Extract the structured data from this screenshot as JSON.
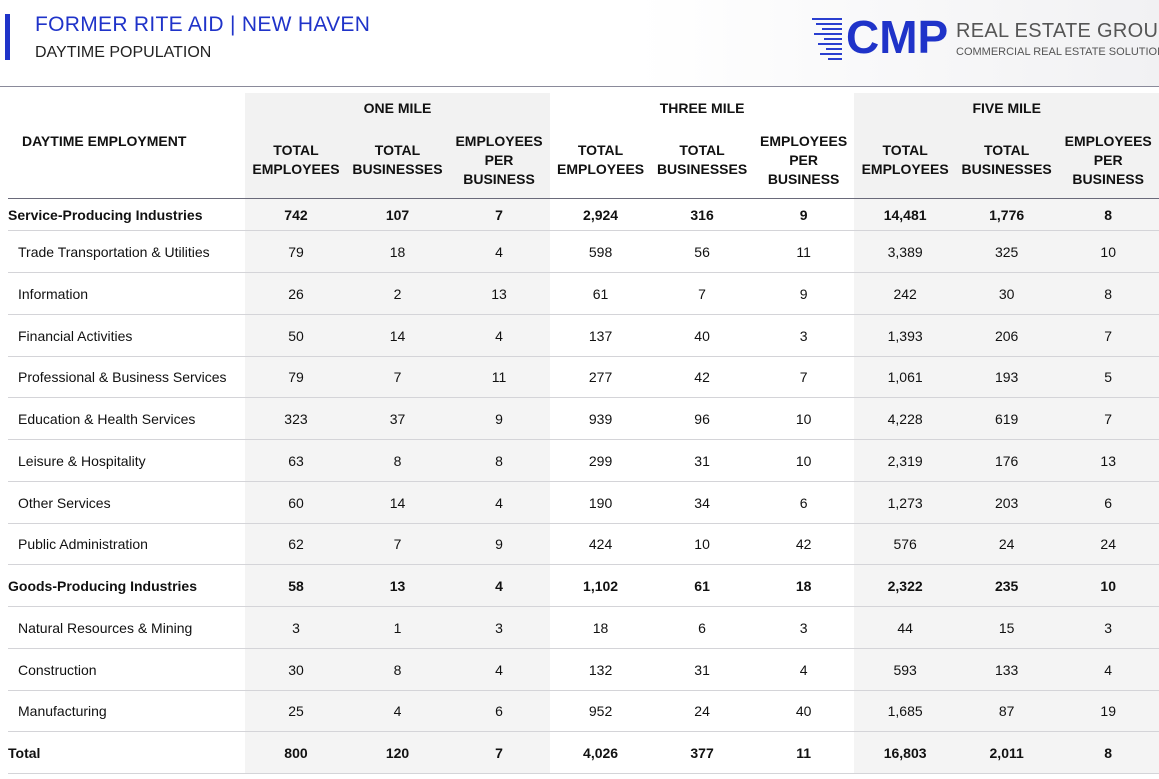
{
  "header": {
    "title": "FORMER RITE AID | NEW HAVEN",
    "subtitle": "DAYTIME POPULATION",
    "logo": {
      "mark": "CMP",
      "name": "REAL ESTATE GROUP",
      "tagline": "COMMERCIAL REAL ESTATE SOLUTIONS"
    },
    "accent_color": "#1f33c9"
  },
  "table": {
    "corner_label": "DAYTIME EMPLOYMENT",
    "groups": [
      "ONE MILE",
      "THREE MILE",
      "FIVE MILE"
    ],
    "columns": [
      [
        "TOTAL",
        "EMPLOYEES"
      ],
      [
        "TOTAL",
        "BUSINESSES"
      ],
      [
        "EMPLOYEES",
        "PER",
        "BUSINESS"
      ]
    ],
    "rows": [
      {
        "label": "Service-Producing Industries",
        "bold": true,
        "values": [
          "742",
          "107",
          "7",
          "2,924",
          "316",
          "9",
          "14,481",
          "1,776",
          "8"
        ]
      },
      {
        "label": "Trade Transportation & Utilities",
        "bold": false,
        "values": [
          "79",
          "18",
          "4",
          "598",
          "56",
          "11",
          "3,389",
          "325",
          "10"
        ]
      },
      {
        "label": "Information",
        "bold": false,
        "values": [
          "26",
          "2",
          "13",
          "61",
          "7",
          "9",
          "242",
          "30",
          "8"
        ]
      },
      {
        "label": "Financial Activities",
        "bold": false,
        "values": [
          "50",
          "14",
          "4",
          "137",
          "40",
          "3",
          "1,393",
          "206",
          "7"
        ]
      },
      {
        "label": "Professional & Business Services",
        "bold": false,
        "values": [
          "79",
          "7",
          "11",
          "277",
          "42",
          "7",
          "1,061",
          "193",
          "5"
        ]
      },
      {
        "label": "Education & Health Services",
        "bold": false,
        "values": [
          "323",
          "37",
          "9",
          "939",
          "96",
          "10",
          "4,228",
          "619",
          "7"
        ]
      },
      {
        "label": "Leisure & Hospitality",
        "bold": false,
        "values": [
          "63",
          "8",
          "8",
          "299",
          "31",
          "10",
          "2,319",
          "176",
          "13"
        ]
      },
      {
        "label": "Other Services",
        "bold": false,
        "values": [
          "60",
          "14",
          "4",
          "190",
          "34",
          "6",
          "1,273",
          "203",
          "6"
        ]
      },
      {
        "label": "Public Administration",
        "bold": false,
        "values": [
          "62",
          "7",
          "9",
          "424",
          "10",
          "42",
          "576",
          "24",
          "24"
        ]
      },
      {
        "label": "Goods-Producing Industries",
        "bold": true,
        "values": [
          "58",
          "13",
          "4",
          "1,102",
          "61",
          "18",
          "2,322",
          "235",
          "10"
        ]
      },
      {
        "label": "Natural Resources & Mining",
        "bold": false,
        "values": [
          "3",
          "1",
          "3",
          "18",
          "6",
          "3",
          "44",
          "15",
          "3"
        ]
      },
      {
        "label": "Construction",
        "bold": false,
        "values": [
          "30",
          "8",
          "4",
          "132",
          "31",
          "4",
          "593",
          "133",
          "4"
        ]
      },
      {
        "label": "Manufacturing",
        "bold": false,
        "values": [
          "25",
          "4",
          "6",
          "952",
          "24",
          "40",
          "1,685",
          "87",
          "19"
        ]
      },
      {
        "label": "Total",
        "bold": true,
        "values": [
          "800",
          "120",
          "7",
          "4,026",
          "377",
          "11",
          "16,803",
          "2,011",
          "8"
        ]
      }
    ]
  }
}
